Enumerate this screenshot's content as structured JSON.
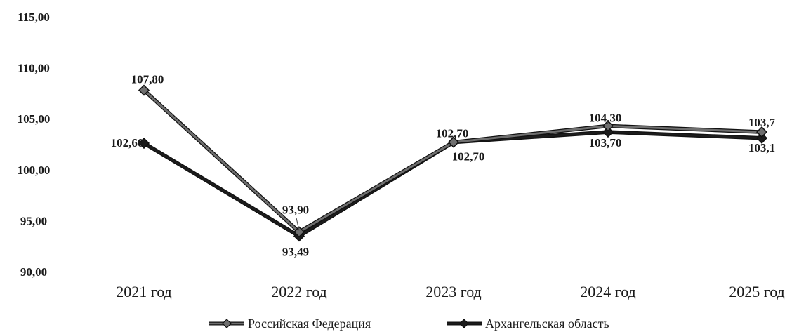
{
  "chart_data": {
    "type": "line",
    "categories": [
      "2021 год",
      "2022 год",
      "2023 год",
      "2024 год",
      "2025 год"
    ],
    "ylim": [
      90,
      115
    ],
    "yticks": [
      "90,00",
      "95,00",
      "100,00",
      "105,00",
      "110,00",
      "115,00"
    ],
    "grid": false,
    "legend_position": "bottom",
    "series": [
      {
        "name": "Российская Федерация",
        "values": [
          107.8,
          93.9,
          102.7,
          104.3,
          103.7
        ],
        "labels": [
          "107,80",
          "93,90",
          "102,70",
          "104,30",
          "103,7"
        ],
        "color": "#6e6e6e"
      },
      {
        "name": "Архангельская область",
        "values": [
          102.6,
          93.49,
          102.7,
          103.7,
          103.1
        ],
        "labels": [
          "102,60",
          "93,49",
          "102,70",
          "103,70",
          "103,1"
        ],
        "color": "#1c1c1c"
      }
    ]
  }
}
